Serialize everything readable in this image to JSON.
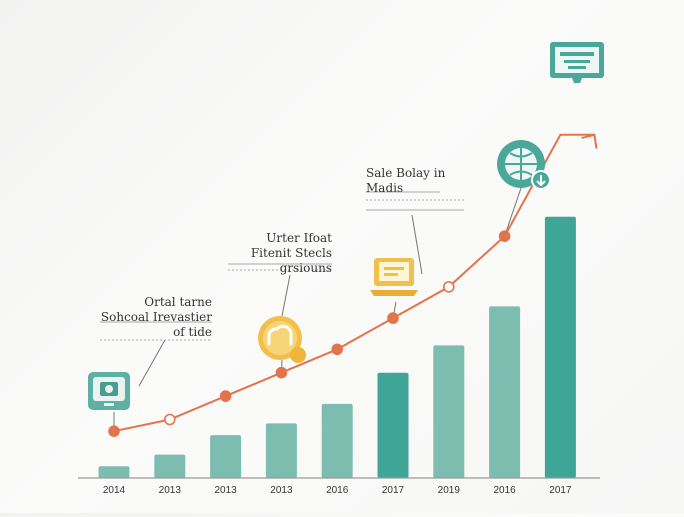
{
  "chart_data": {
    "type": "bar",
    "categories": [
      "2014",
      "2013",
      "2013",
      "2013",
      "2016",
      "2017",
      "2019",
      "2016",
      "2017"
    ],
    "series": [
      {
        "type": "bar",
        "values": [
          3,
          6,
          11,
          14,
          19,
          27,
          34,
          44,
          67
        ]
      },
      {
        "type": "line",
        "values": [
          12,
          15,
          21,
          27,
          33,
          41,
          49,
          62,
          88
        ]
      }
    ],
    "ylim": [
      0,
      100
    ],
    "grid": false,
    "annotations": [
      {
        "lines": [
          "Ortal tarne",
          "Sohcoal Irevastier of tide"
        ],
        "icon": "photo-frame-icon"
      },
      {
        "lines": [
          "Urter Ifoat",
          "Fitenit Stecls grsiouns"
        ],
        "icon": "cloud-badge-icon"
      },
      {
        "lines": [
          "Sale Bolay in",
          "Madis"
        ],
        "icon": "laptop-icon"
      },
      {
        "icon": "globe-icon"
      },
      {
        "icon": "presentation-board-icon"
      }
    ],
    "colors": {
      "bar_light": "#7dbdb0",
      "bar_dark": "#3fa596",
      "line": "#e2744b",
      "icon_teal": "#4aa89b",
      "icon_yellow": "#f2c04a"
    }
  }
}
